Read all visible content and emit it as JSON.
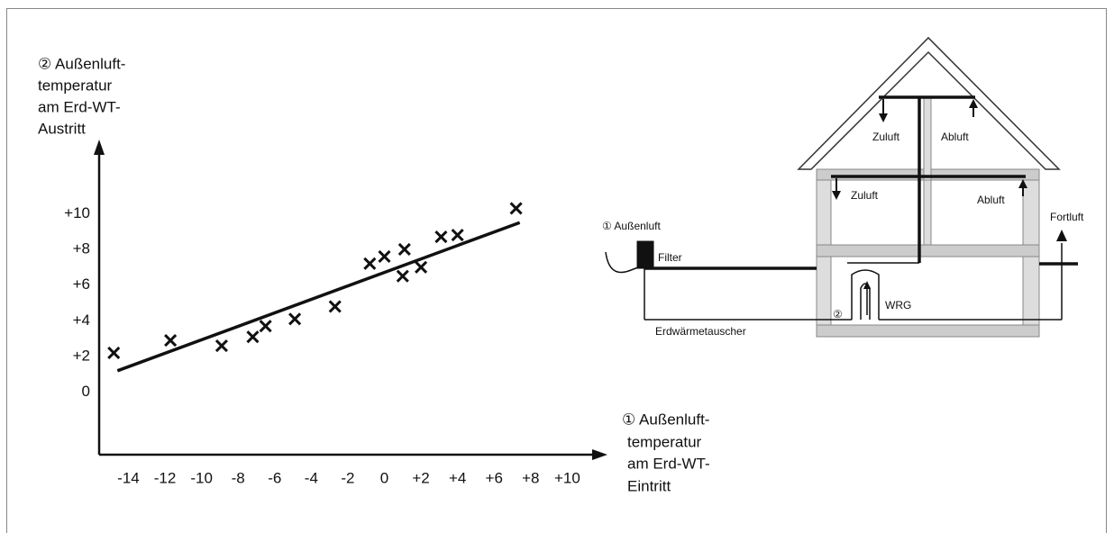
{
  "chart_data": {
    "type": "scatter",
    "y_label": [
      "② Außenluft-",
      "temperatur",
      "am Erd-WT-",
      "Austritt"
    ],
    "x_label": [
      "① Außenluft-",
      "temperatur",
      "am Erd-WT-",
      "Eintritt"
    ],
    "points": {
      "color": "#111111",
      "x": [
        -14.8,
        -11.7,
        -8.9,
        -7.2,
        -6.5,
        -4.9,
        -2.7,
        -0.8,
        0.0,
        1.1,
        1.0,
        2.0,
        3.1,
        4.0,
        7.2
      ],
      "values": [
        2.2,
        2.9,
        2.6,
        3.1,
        3.7,
        4.1,
        4.8,
        7.2,
        7.6,
        8.0,
        6.5,
        7.0,
        8.7,
        8.8,
        10.3
      ]
    },
    "trend_line": {
      "x": [
        -14.6,
        7.4
      ],
      "values": [
        1.2,
        9.5
      ]
    },
    "xlim": [
      -15.6,
      12.1
    ],
    "ylim": [
      -3.5,
      13.9
    ],
    "xticks": [
      -14,
      -12,
      -10,
      -8,
      -6,
      -4,
      -2,
      0,
      {
        "value": 2,
        "label": "+2"
      },
      {
        "value": 4,
        "label": "+4"
      },
      {
        "value": 6,
        "label": "+6"
      },
      {
        "value": 8,
        "label": "+8"
      },
      {
        "value": 10,
        "label": "+10"
      }
    ],
    "yticks": [
      0,
      {
        "value": 2,
        "label": "+2"
      },
      {
        "value": 4,
        "label": "+4"
      },
      {
        "value": 6,
        "label": "+6"
      },
      {
        "value": 8,
        "label": "+8"
      },
      {
        "value": 10,
        "label": "+10"
      }
    ],
    "grid": false
  },
  "diagram": {
    "labels": {
      "zuluft_top": "Zuluft",
      "abluft_top": "Abluft",
      "zuluft_mid": "Zuluft",
      "abluft_mid": "Abluft",
      "fortluft": "Fortluft",
      "aussenluft": "① Außenluft",
      "filter": "Filter",
      "wrg": "WRG",
      "marker2": "②",
      "erdwaermetauscher": "Erdwärmetauscher"
    }
  }
}
